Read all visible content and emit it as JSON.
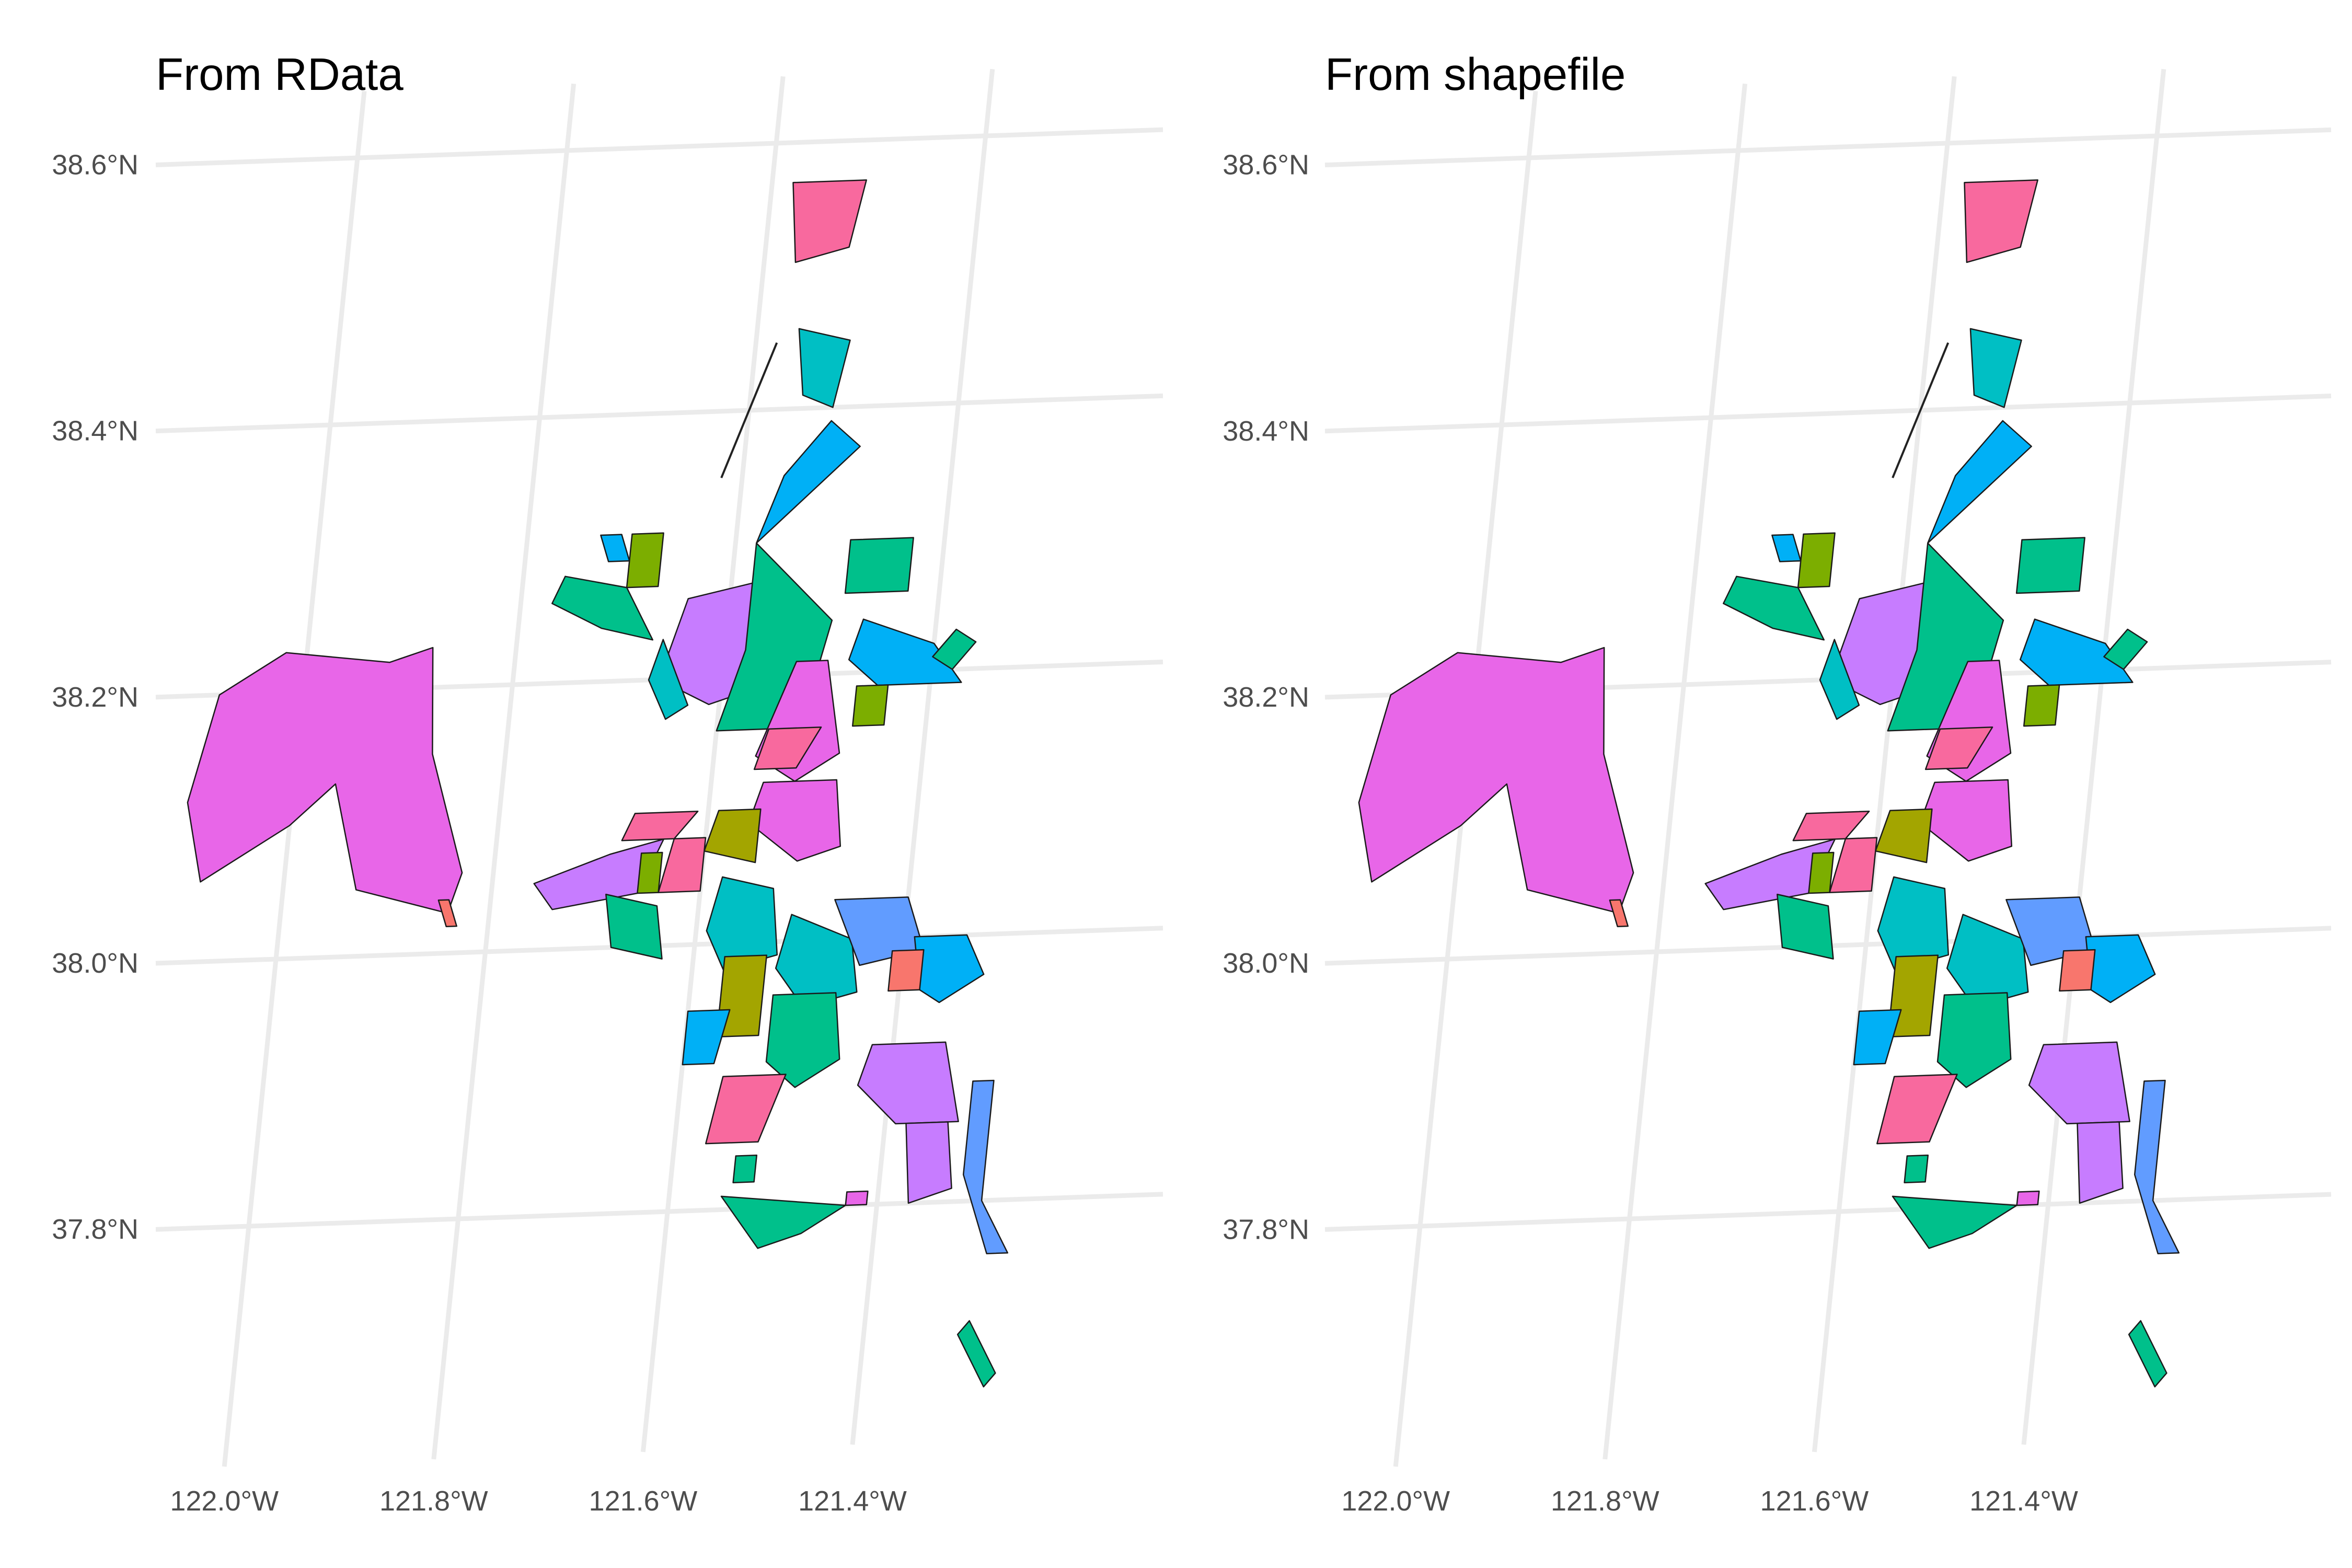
{
  "panels": [
    {
      "title": "From RData",
      "x_ticks": [
        "122.0°W",
        "121.8°W",
        "121.6°W",
        "121.4°W"
      ],
      "y_ticks": [
        "38.6°N",
        "38.4°N",
        "38.2°N",
        "38.0°N",
        "37.8°N"
      ]
    },
    {
      "title": "From shapefile",
      "x_ticks": [
        "122.0°W",
        "121.8°W",
        "121.6°W",
        "121.4°W"
      ],
      "y_ticks": [
        "38.6°N",
        "38.4°N",
        "38.2°N",
        "38.0°N",
        "37.8°N"
      ]
    }
  ],
  "map": {
    "x_ticks_deg": [
      -122.0,
      -121.8,
      -121.6,
      -121.4
    ],
    "y_ticks_deg": [
      38.6,
      38.4,
      38.2,
      38.0,
      37.8
    ],
    "lon_range": [
      -122.12,
      -121.24
    ],
    "lat_range": [
      37.7,
      38.62
    ],
    "regions": [
      {
        "name": "region-suisun",
        "color": "#e866e8",
        "coords": [
          [
            -122.08,
            38.2
          ],
          [
            -122.02,
            38.23
          ],
          [
            -121.92,
            38.22
          ],
          [
            -121.88,
            38.23
          ],
          [
            -121.87,
            38.15
          ],
          [
            -121.83,
            38.06
          ],
          [
            -121.84,
            38.03
          ],
          [
            -121.93,
            38.05
          ],
          [
            -121.96,
            38.13
          ],
          [
            -122.0,
            38.1
          ],
          [
            -122.08,
            38.06
          ],
          [
            -122.1,
            38.12
          ]
        ]
      },
      {
        "name": "region-north-1",
        "color": "#f8699e",
        "coords": [
          [
            -121.58,
            38.57
          ],
          [
            -121.51,
            38.57
          ],
          [
            -121.52,
            38.52
          ],
          [
            -121.57,
            38.51
          ]
        ]
      },
      {
        "name": "region-north-2",
        "color": "#00bfc4",
        "coords": [
          [
            -121.56,
            38.46
          ],
          [
            -121.51,
            38.45
          ],
          [
            -121.52,
            38.4
          ],
          [
            -121.55,
            38.41
          ]
        ]
      },
      {
        "name": "region-north-3",
        "color": "#00b0f6",
        "coords": [
          [
            -121.52,
            38.39
          ],
          [
            -121.49,
            38.37
          ],
          [
            -121.58,
            38.3
          ],
          [
            -121.56,
            38.35
          ]
        ]
      },
      {
        "name": "region-yolo",
        "color": "#c77cff",
        "coords": [
          [
            -121.64,
            38.26
          ],
          [
            -121.58,
            38.27
          ],
          [
            -121.57,
            38.19
          ],
          [
            -121.61,
            38.18
          ],
          [
            -121.66,
            38.2
          ]
        ]
      },
      {
        "name": "region-hastings",
        "color": "#00c08b",
        "coords": [
          [
            -121.58,
            38.3
          ],
          [
            -121.5,
            38.24
          ],
          [
            -121.52,
            38.16
          ],
          [
            -121.6,
            38.16
          ],
          [
            -121.58,
            38.22
          ]
        ]
      },
      {
        "name": "region-a",
        "color": "#00c08b",
        "coords": [
          [
            -121.49,
            38.3
          ],
          [
            -121.43,
            38.3
          ],
          [
            -121.43,
            38.26
          ],
          [
            -121.49,
            38.26
          ]
        ]
      },
      {
        "name": "region-b",
        "color": "#00b0f6",
        "coords": [
          [
            -121.47,
            38.24
          ],
          [
            -121.4,
            38.22
          ],
          [
            -121.37,
            38.19
          ],
          [
            -121.45,
            38.19
          ],
          [
            -121.48,
            38.21
          ]
        ]
      },
      {
        "name": "region-c",
        "color": "#e866e8",
        "coords": [
          [
            -121.53,
            38.21
          ],
          [
            -121.5,
            38.21
          ],
          [
            -121.48,
            38.14
          ],
          [
            -121.52,
            38.12
          ],
          [
            -121.56,
            38.14
          ]
        ]
      },
      {
        "name": "region-d",
        "color": "#7cae00",
        "coords": [
          [
            -121.47,
            38.19
          ],
          [
            -121.44,
            38.19
          ],
          [
            -121.44,
            38.16
          ],
          [
            -121.47,
            38.16
          ]
        ]
      },
      {
        "name": "region-e",
        "color": "#f8699e",
        "coords": [
          [
            -121.55,
            38.16
          ],
          [
            -121.5,
            38.16
          ],
          [
            -121.52,
            38.13
          ],
          [
            -121.56,
            38.13
          ]
        ]
      },
      {
        "name": "region-f",
        "color": "#00c08b",
        "coords": [
          [
            -121.76,
            38.28
          ],
          [
            -121.7,
            38.27
          ],
          [
            -121.67,
            38.23
          ],
          [
            -121.72,
            38.24
          ],
          [
            -121.77,
            38.26
          ]
        ]
      },
      {
        "name": "region-g",
        "color": "#7cae00",
        "coords": [
          [
            -121.7,
            38.31
          ],
          [
            -121.67,
            38.31
          ],
          [
            -121.67,
            38.27
          ],
          [
            -121.7,
            38.27
          ]
        ]
      },
      {
        "name": "region-h",
        "color": "#00bfc4",
        "coords": [
          [
            -121.66,
            38.23
          ],
          [
            -121.63,
            38.18
          ],
          [
            -121.65,
            38.17
          ],
          [
            -121.67,
            38.2
          ]
        ]
      },
      {
        "name": "region-i",
        "color": "#e866e8",
        "coords": [
          [
            -121.55,
            38.12
          ],
          [
            -121.48,
            38.12
          ],
          [
            -121.47,
            38.07
          ],
          [
            -121.51,
            38.06
          ],
          [
            -121.56,
            38.09
          ]
        ]
      },
      {
        "name": "region-j",
        "color": "#a3a500",
        "coords": [
          [
            -121.59,
            38.1
          ],
          [
            -121.55,
            38.1
          ],
          [
            -121.55,
            38.06
          ],
          [
            -121.6,
            38.07
          ]
        ]
      },
      {
        "name": "region-k",
        "color": "#c77cff",
        "coords": [
          [
            -121.69,
            38.07
          ],
          [
            -121.64,
            38.08
          ],
          [
            -121.66,
            38.04
          ],
          [
            -121.74,
            38.03
          ],
          [
            -121.76,
            38.05
          ]
        ]
      },
      {
        "name": "region-l",
        "color": "#f8699e",
        "coords": [
          [
            -121.63,
            38.08
          ],
          [
            -121.6,
            38.08
          ],
          [
            -121.6,
            38.04
          ],
          [
            -121.64,
            38.04
          ]
        ]
      },
      {
        "name": "region-m",
        "color": "#7cae00",
        "coords": [
          [
            -121.66,
            38.07
          ],
          [
            -121.64,
            38.07
          ],
          [
            -121.64,
            38.04
          ],
          [
            -121.66,
            38.04
          ]
        ]
      },
      {
        "name": "region-n",
        "color": "#f8699e",
        "coords": [
          [
            -121.67,
            38.1
          ],
          [
            -121.61,
            38.1
          ],
          [
            -121.63,
            38.08
          ],
          [
            -121.68,
            38.08
          ]
        ]
      },
      {
        "name": "region-o",
        "color": "#00bfc4",
        "coords": [
          [
            -121.58,
            38.05
          ],
          [
            -121.53,
            38.04
          ],
          [
            -121.52,
            37.99
          ],
          [
            -121.57,
            37.98
          ],
          [
            -121.59,
            38.01
          ]
        ]
      },
      {
        "name": "region-p",
        "color": "#00bfc4",
        "coords": [
          [
            -121.51,
            38.02
          ],
          [
            -121.45,
            38.0
          ],
          [
            -121.44,
            37.96
          ],
          [
            -121.49,
            37.95
          ],
          [
            -121.52,
            37.98
          ]
        ]
      },
      {
        "name": "region-q",
        "color": "#619cff",
        "coords": [
          [
            -121.47,
            38.03
          ],
          [
            -121.4,
            38.03
          ],
          [
            -121.38,
            37.99
          ],
          [
            -121.44,
            37.98
          ]
        ]
      },
      {
        "name": "region-r",
        "color": "#00b0f6",
        "coords": [
          [
            -121.39,
            38.0
          ],
          [
            -121.34,
            38.0
          ],
          [
            -121.32,
            37.97
          ],
          [
            -121.36,
            37.95
          ],
          [
            -121.38,
            37.96
          ]
        ]
      },
      {
        "name": "region-s",
        "color": "#f8766d",
        "coords": [
          [
            -121.41,
            37.99
          ],
          [
            -121.38,
            37.99
          ],
          [
            -121.38,
            37.96
          ],
          [
            -121.41,
            37.96
          ]
        ]
      },
      {
        "name": "region-t",
        "color": "#a3a500",
        "coords": [
          [
            -121.57,
            37.99
          ],
          [
            -121.53,
            37.99
          ],
          [
            -121.53,
            37.93
          ],
          [
            -121.57,
            37.93
          ]
        ]
      },
      {
        "name": "region-u",
        "color": "#00c08b",
        "coords": [
          [
            -121.52,
            37.96
          ],
          [
            -121.46,
            37.96
          ],
          [
            -121.45,
            37.91
          ],
          [
            -121.49,
            37.89
          ],
          [
            -121.52,
            37.91
          ]
        ]
      },
      {
        "name": "region-v",
        "color": "#00b0f6",
        "coords": [
          [
            -121.6,
            37.95
          ],
          [
            -121.56,
            37.95
          ],
          [
            -121.57,
            37.91
          ],
          [
            -121.6,
            37.91
          ]
        ]
      },
      {
        "name": "region-w",
        "color": "#f8699e",
        "coords": [
          [
            -121.56,
            37.9
          ],
          [
            -121.5,
            37.9
          ],
          [
            -121.52,
            37.85
          ],
          [
            -121.57,
            37.85
          ]
        ]
      },
      {
        "name": "region-x",
        "color": "#c77cff",
        "coords": [
          [
            -121.42,
            37.92
          ],
          [
            -121.35,
            37.92
          ],
          [
            -121.33,
            37.86
          ],
          [
            -121.39,
            37.86
          ],
          [
            -121.43,
            37.89
          ]
        ]
      },
      {
        "name": "region-y",
        "color": "#619cff",
        "coords": [
          [
            -121.32,
            37.89
          ],
          [
            -121.3,
            37.89
          ],
          [
            -121.3,
            37.8
          ],
          [
            -121.27,
            37.76
          ],
          [
            -121.29,
            37.76
          ],
          [
            -121.32,
            37.82
          ]
        ]
      },
      {
        "name": "region-z",
        "color": "#c77cff",
        "coords": [
          [
            -121.38,
            37.86
          ],
          [
            -121.34,
            37.86
          ],
          [
            -121.33,
            37.81
          ],
          [
            -121.37,
            37.8
          ]
        ]
      },
      {
        "name": "region-aa",
        "color": "#00c08b",
        "coords": [
          [
            -121.55,
            37.81
          ],
          [
            -121.43,
            37.8
          ],
          [
            -121.47,
            37.78
          ],
          [
            -121.51,
            37.77
          ]
        ]
      },
      {
        "name": "region-ab",
        "color": "#00c08b",
        "coords": [
          [
            -121.3,
            37.71
          ],
          [
            -121.27,
            37.67
          ],
          [
            -121.28,
            37.66
          ],
          [
            -121.31,
            37.7
          ]
        ]
      },
      {
        "name": "region-ac",
        "color": "#00c08b",
        "coords": [
          [
            -121.54,
            37.84
          ],
          [
            -121.52,
            37.84
          ],
          [
            -121.52,
            37.82
          ],
          [
            -121.54,
            37.82
          ]
        ]
      },
      {
        "name": "region-ad",
        "color": "#e866e8",
        "coords": [
          [
            -121.43,
            37.81
          ],
          [
            -121.41,
            37.81
          ],
          [
            -121.41,
            37.8
          ],
          [
            -121.43,
            37.8
          ]
        ]
      },
      {
        "name": "region-ae",
        "color": "#00c08b",
        "coords": [
          [
            -121.69,
            38.04
          ],
          [
            -121.64,
            38.03
          ],
          [
            -121.63,
            37.99
          ],
          [
            -121.68,
            38.0
          ]
        ]
      },
      {
        "name": "region-af",
        "color": "#f8766d",
        "coords": [
          [
            -121.85,
            38.04
          ],
          [
            -121.84,
            38.02
          ],
          [
            -121.83,
            38.02
          ],
          [
            -121.84,
            38.04
          ]
        ]
      },
      {
        "name": "region-ag",
        "color": "#00b0f6",
        "coords": [
          [
            -121.73,
            38.31
          ],
          [
            -121.71,
            38.31
          ],
          [
            -121.7,
            38.29
          ],
          [
            -121.72,
            38.29
          ]
        ]
      },
      {
        "name": "region-ah",
        "color": "#00c08b",
        "coords": [
          [
            -121.38,
            38.23
          ],
          [
            -121.36,
            38.22
          ],
          [
            -121.38,
            38.2
          ],
          [
            -121.4,
            38.21
          ]
        ]
      }
    ],
    "lines": [
      {
        "name": "levee-line",
        "coords": [
          [
            -121.62,
            38.35
          ],
          [
            -121.58,
            38.45
          ]
        ]
      }
    ]
  }
}
